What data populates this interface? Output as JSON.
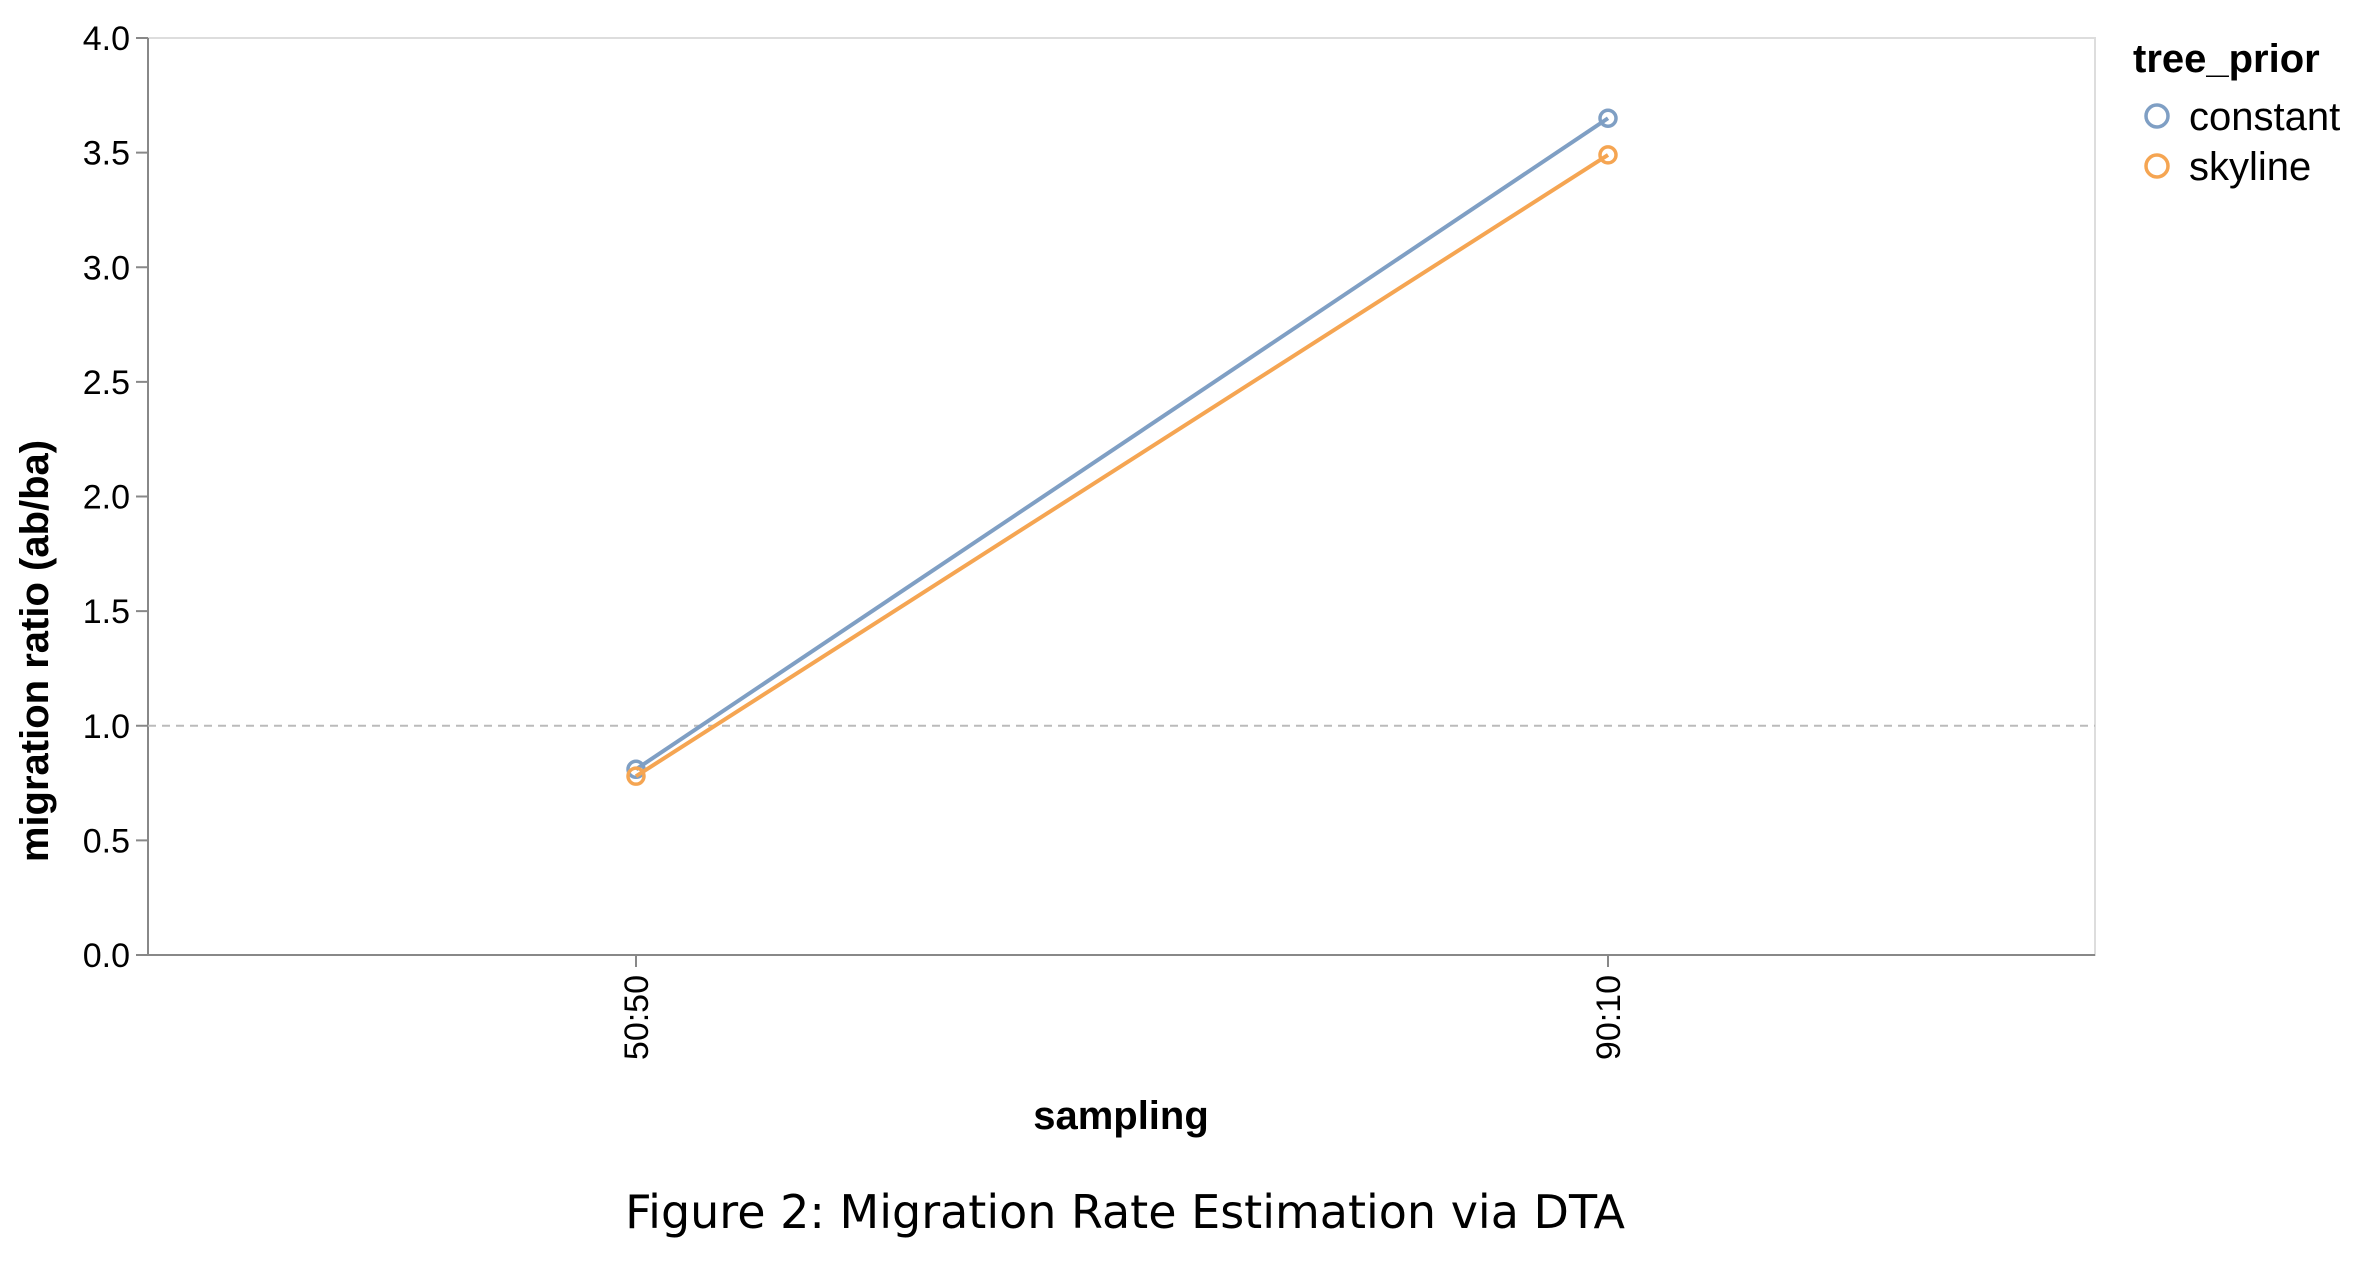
{
  "caption": "Figure 2: Migration Rate Estimation via DTA",
  "chart_data": {
    "type": "line",
    "categories": [
      "50:50",
      "90:10"
    ],
    "series": [
      {
        "name": "constant",
        "values": [
          0.81,
          3.65
        ],
        "color": "#7f9fc4"
      },
      {
        "name": "skyline",
        "values": [
          0.78,
          3.49
        ],
        "color": "#f5a552"
      }
    ],
    "xlabel": "sampling",
    "ylabel": "migration ratio (ab/ba)",
    "ylim": [
      0,
      4
    ],
    "yticks": [
      0.0,
      0.5,
      1.0,
      1.5,
      2.0,
      2.5,
      3.0,
      3.5,
      4.0
    ],
    "yticklabels": [
      "0.0",
      "0.5",
      "1.0",
      "1.5",
      "2.0",
      "2.5",
      "3.0",
      "3.5",
      "4.0"
    ],
    "reference_line": {
      "y": 1.0,
      "style": "dashed"
    },
    "legend": {
      "title": "tree_prior",
      "position": "top-right"
    },
    "grid": false,
    "markers": "open-circle"
  }
}
